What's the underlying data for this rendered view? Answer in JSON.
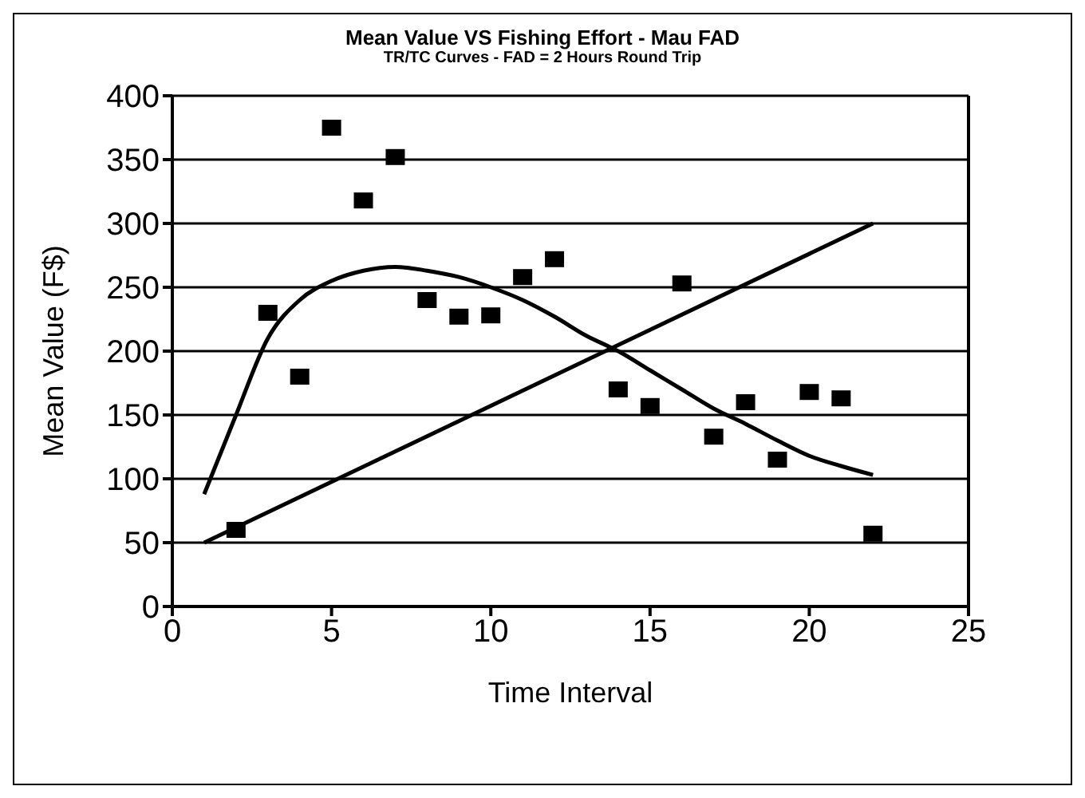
{
  "chart_data": {
    "type": "scatter",
    "title": "Mean Value VS Fishing Effort - Mau FAD",
    "subtitle": "TR/TC Curves - FAD = 2 Hours Round Trip",
    "xlabel": "Time Interval",
    "ylabel": "Mean Value (F$)",
    "xlim": [
      0,
      25
    ],
    "xticks": [
      0,
      5,
      10,
      15,
      20,
      25
    ],
    "ylim": [
      0,
      400
    ],
    "yticks": [
      0,
      50,
      100,
      150,
      200,
      250,
      300,
      350,
      400
    ],
    "grid": "y",
    "series": [
      {
        "marker": "square",
        "color": "#000000",
        "x": [
          2,
          3,
          4,
          5,
          6,
          7,
          8,
          9,
          10,
          11,
          12,
          14,
          15,
          16,
          17,
          18,
          19,
          20,
          21,
          22
        ],
        "values": [
          60,
          230,
          180,
          375,
          318,
          352,
          240,
          227,
          228,
          258,
          272,
          170,
          157,
          253,
          133,
          160,
          115,
          168,
          163,
          57
        ]
      },
      {
        "type": "line",
        "marker": "none",
        "color": "#000000",
        "x": [
          1,
          2,
          3,
          4,
          5,
          6,
          7,
          8,
          9,
          10,
          11,
          12,
          13,
          14,
          15,
          16,
          17,
          18,
          19,
          20,
          21,
          22
        ],
        "values": [
          88,
          150,
          210,
          240,
          255,
          263,
          266,
          263,
          258,
          250,
          240,
          227,
          212,
          200,
          185,
          170,
          155,
          143,
          130,
          118,
          110,
          103
        ]
      },
      {
        "type": "line",
        "marker": "none",
        "color": "#000000",
        "x": [
          1,
          22
        ],
        "values": [
          50,
          300
        ]
      }
    ]
  }
}
